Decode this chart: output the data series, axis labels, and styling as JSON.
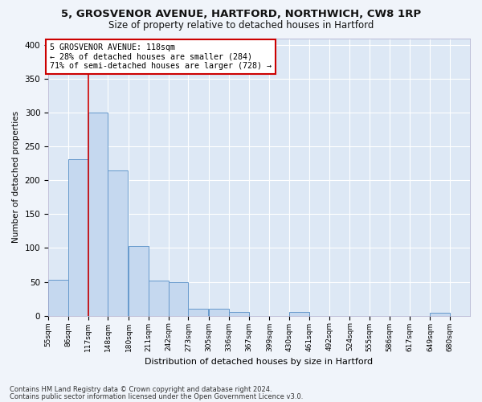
{
  "title1": "5, GROSVENOR AVENUE, HARTFORD, NORTHWICH, CW8 1RP",
  "title2": "Size of property relative to detached houses in Hartford",
  "xlabel": "Distribution of detached houses by size in Hartford",
  "ylabel": "Number of detached properties",
  "footnote1": "Contains HM Land Registry data © Crown copyright and database right 2024.",
  "footnote2": "Contains public sector information licensed under the Open Government Licence v3.0.",
  "bins": [
    55,
    86,
    117,
    148,
    180,
    211,
    242,
    273,
    305,
    336,
    367,
    399,
    430,
    461,
    492,
    524,
    555,
    586,
    617,
    649,
    680
  ],
  "bin_labels": [
    "55sqm",
    "86sqm",
    "117sqm",
    "148sqm",
    "180sqm",
    "211sqm",
    "242sqm",
    "273sqm",
    "305sqm",
    "336sqm",
    "367sqm",
    "399sqm",
    "430sqm",
    "461sqm",
    "492sqm",
    "524sqm",
    "555sqm",
    "586sqm",
    "617sqm",
    "649sqm",
    "680sqm"
  ],
  "bar_heights": [
    53,
    231,
    300,
    215,
    103,
    52,
    49,
    10,
    10,
    6,
    0,
    0,
    5,
    0,
    0,
    0,
    0,
    0,
    0,
    4
  ],
  "bar_color": "#c5d8ef",
  "bar_edge_color": "#6699cc",
  "property_size": 118,
  "property_line_color": "#cc0000",
  "annotation_line1": "5 GROSVENOR AVENUE: 118sqm",
  "annotation_line2": "← 28% of detached houses are smaller (284)",
  "annotation_line3": "71% of semi-detached houses are larger (728) →",
  "annotation_box_color": "#ffffff",
  "annotation_box_edge": "#cc0000",
  "ylim": [
    0,
    410
  ],
  "yticks": [
    0,
    50,
    100,
    150,
    200,
    250,
    300,
    350,
    400
  ],
  "background_color": "#dde8f5",
  "grid_color": "#ffffff",
  "title1_fontsize": 9.5,
  "title2_fontsize": 8.5,
  "fig_bg_color": "#f0f4fa"
}
